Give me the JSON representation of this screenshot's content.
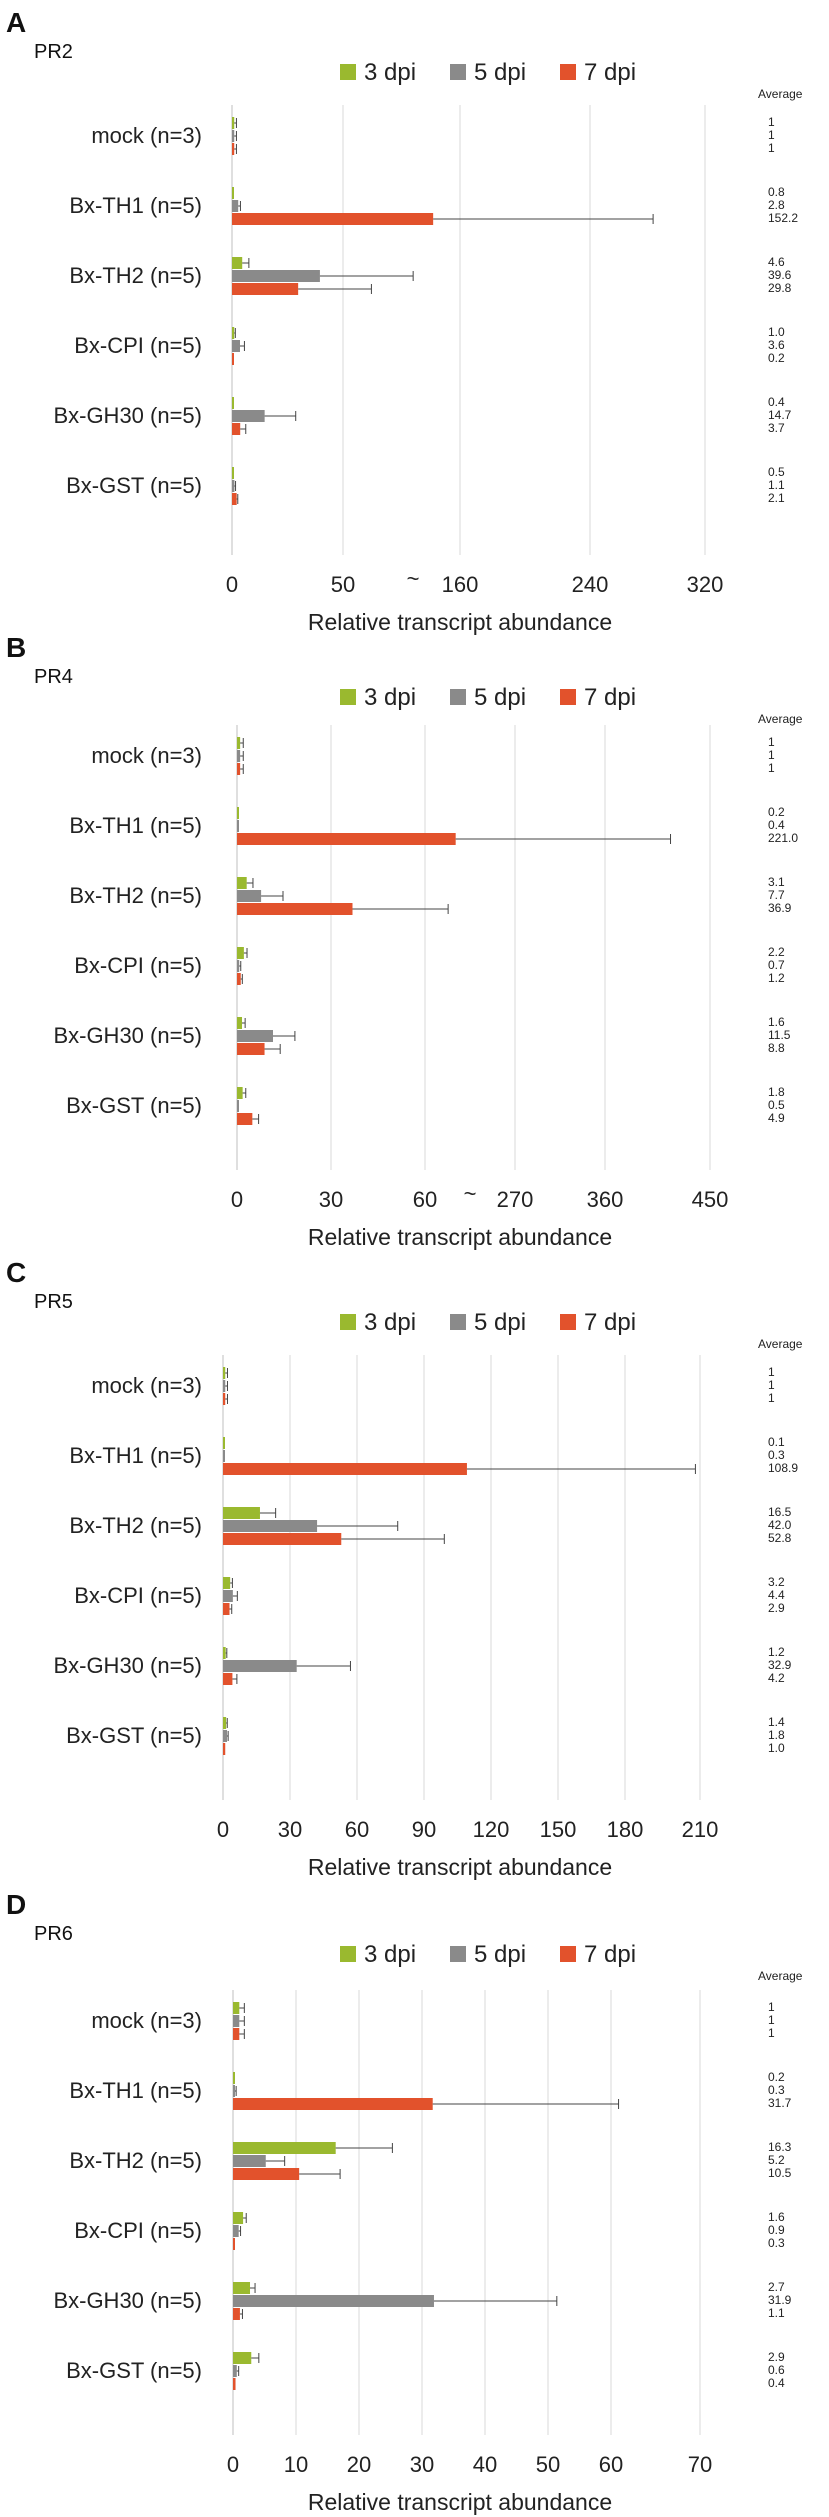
{
  "colors": {
    "d3": "#9ab92f",
    "d5": "#8a8a8a",
    "d7": "#e2522c",
    "grid": "#d9d9d9",
    "err": "#444444"
  },
  "chart_data": [
    {
      "type": "bar",
      "orientation": "horizontal",
      "panel": "A",
      "title": "PR2",
      "categories": [
        "mock (n=3)",
        "Bx-TH1 (n=5)",
        "Bx-TH2 (n=5)",
        "Bx-CPI (n=5)",
        "Bx-GH30 (n=5)",
        "Bx-GST (n=5)"
      ],
      "series": [
        {
          "name": "3 dpi",
          "values": [
            1,
            0.8,
            4.6,
            1.0,
            0.4,
            0.5
          ],
          "errors": [
            1,
            0.5,
            3,
            0.5,
            0.3,
            0.3
          ]
        },
        {
          "name": "5 dpi",
          "values": [
            1,
            2.8,
            39.6,
            3.6,
            14.7,
            1.1
          ],
          "errors": [
            1,
            1,
            42,
            2,
            14,
            0.5
          ]
        },
        {
          "name": "7 dpi",
          "values": [
            1,
            152.2,
            29.8,
            0.2,
            3.7,
            2.1
          ],
          "errors": [
            1,
            127,
            33,
            0,
            2.5,
            0.5
          ]
        }
      ],
      "averages_header": "Average",
      "averages": [
        [
          "1",
          "1",
          "1"
        ],
        [
          "0.8",
          "2.8",
          "152.2"
        ],
        [
          "4.6",
          "39.6",
          "29.8"
        ],
        [
          "1.0",
          "3.6",
          "0.2"
        ],
        [
          "0.4",
          "14.7",
          "3.7"
        ],
        [
          "0.5",
          "1.1",
          "2.1"
        ]
      ],
      "xticks": [
        "0",
        "50",
        "160",
        "240",
        "320"
      ],
      "axis_break": {
        "symbol": "~",
        "from": 80,
        "to": 130
      },
      "xlabel": "Relative transcript abundance"
    },
    {
      "type": "bar",
      "orientation": "horizontal",
      "panel": "B",
      "title": "PR4",
      "categories": [
        "mock (n=3)",
        "Bx-TH1 (n=5)",
        "Bx-TH2 (n=5)",
        "Bx-CPI (n=5)",
        "Bx-GH30 (n=5)",
        "Bx-GST (n=5)"
      ],
      "series": [
        {
          "name": "3 dpi",
          "values": [
            1,
            0.2,
            3.1,
            2.2,
            1.6,
            1.8
          ],
          "errors": [
            1,
            0.2,
            2,
            1,
            1,
            1
          ]
        },
        {
          "name": "5 dpi",
          "values": [
            1,
            0.4,
            7.7,
            0.7,
            11.5,
            0.5
          ],
          "errors": [
            1,
            0.3,
            7,
            0.5,
            7,
            0.3
          ]
        },
        {
          "name": "7 dpi",
          "values": [
            1,
            221.0,
            36.9,
            1.2,
            8.8,
            4.9
          ],
          "errors": [
            1,
            193,
            33,
            0.5,
            5,
            2
          ]
        }
      ],
      "averages_header": "Average",
      "averages": [
        [
          "1",
          "1",
          "1"
        ],
        [
          "0.2",
          "0.4",
          "221.0"
        ],
        [
          "3.1",
          "7.7",
          "36.9"
        ],
        [
          "2.2",
          "0.7",
          "1.2"
        ],
        [
          "1.6",
          "11.5",
          "8.8"
        ],
        [
          "1.8",
          "0.5",
          "4.9"
        ]
      ],
      "xticks": [
        "0",
        "30",
        "60",
        "270",
        "360",
        "450"
      ],
      "axis_break": {
        "symbol": "~",
        "from": 90,
        "to": 180
      },
      "xlabel": "Relative transcript abundance"
    },
    {
      "type": "bar",
      "orientation": "horizontal",
      "panel": "C",
      "title": "PR5",
      "categories": [
        "mock (n=3)",
        "Bx-TH1 (n=5)",
        "Bx-TH2 (n=5)",
        "Bx-CPI (n=5)",
        "Bx-GH30 (n=5)",
        "Bx-GST (n=5)"
      ],
      "series": [
        {
          "name": "3 dpi",
          "values": [
            1,
            0.1,
            16.5,
            3.2,
            1.2,
            1.4
          ],
          "errors": [
            1,
            0.1,
            7,
            1,
            0.5,
            0.5
          ]
        },
        {
          "name": "5 dpi",
          "values": [
            1,
            0.3,
            42.0,
            4.4,
            32.9,
            1.8
          ],
          "errors": [
            1,
            0.2,
            36,
            2,
            24,
            0.5
          ]
        },
        {
          "name": "7 dpi",
          "values": [
            1,
            108.9,
            52.8,
            2.9,
            4.2,
            1.0
          ],
          "errors": [
            1,
            102,
            46,
            1,
            2,
            0.3
          ]
        }
      ],
      "averages_header": "Average",
      "averages": [
        [
          "1",
          "1",
          "1"
        ],
        [
          "0.1",
          "0.3",
          "108.9"
        ],
        [
          "16.5",
          "42.0",
          "52.8"
        ],
        [
          "3.2",
          "4.4",
          "2.9"
        ],
        [
          "1.2",
          "32.9",
          "4.2"
        ],
        [
          "1.4",
          "1.8",
          "1.0"
        ]
      ],
      "xticks": [
        "0",
        "30",
        "60",
        "90",
        "120",
        "150",
        "180",
        "210"
      ],
      "xlabel": "Relative transcript abundance"
    },
    {
      "type": "bar",
      "orientation": "horizontal",
      "panel": "D",
      "title": "PR6",
      "categories": [
        "mock (n=3)",
        "Bx-TH1 (n=5)",
        "Bx-TH2 (n=5)",
        "Bx-CPI (n=5)",
        "Bx-GH30 (n=5)",
        "Bx-GST (n=5)"
      ],
      "series": [
        {
          "name": "3 dpi",
          "values": [
            1,
            0.2,
            16.3,
            1.6,
            2.7,
            2.9
          ],
          "errors": [
            0.8,
            0.1,
            9,
            0.5,
            0.8,
            1.2
          ]
        },
        {
          "name": "5 dpi",
          "values": [
            1,
            0.3,
            5.2,
            0.9,
            31.9,
            0.6
          ],
          "errors": [
            0.8,
            0.2,
            3,
            0.3,
            19.5,
            0.3
          ]
        },
        {
          "name": "7 dpi",
          "values": [
            1,
            31.7,
            10.5,
            0.3,
            1.1,
            0.4
          ],
          "errors": [
            0.8,
            29.5,
            6.5,
            0.1,
            0.4,
            0.1
          ]
        }
      ],
      "averages_header": "Average",
      "averages": [
        [
          "1",
          "1",
          "1"
        ],
        [
          "0.2",
          "0.3",
          "31.7"
        ],
        [
          "16.3",
          "5.2",
          "10.5"
        ],
        [
          "1.6",
          "0.9",
          "0.3"
        ],
        [
          "2.7",
          "31.9",
          "1.1"
        ],
        [
          "2.9",
          "0.6",
          "0.4"
        ]
      ],
      "xticks": [
        "0",
        "10",
        "20",
        "30",
        "40",
        "50",
        "60",
        "70"
      ],
      "xlabel": "Relative transcript abundance"
    }
  ]
}
